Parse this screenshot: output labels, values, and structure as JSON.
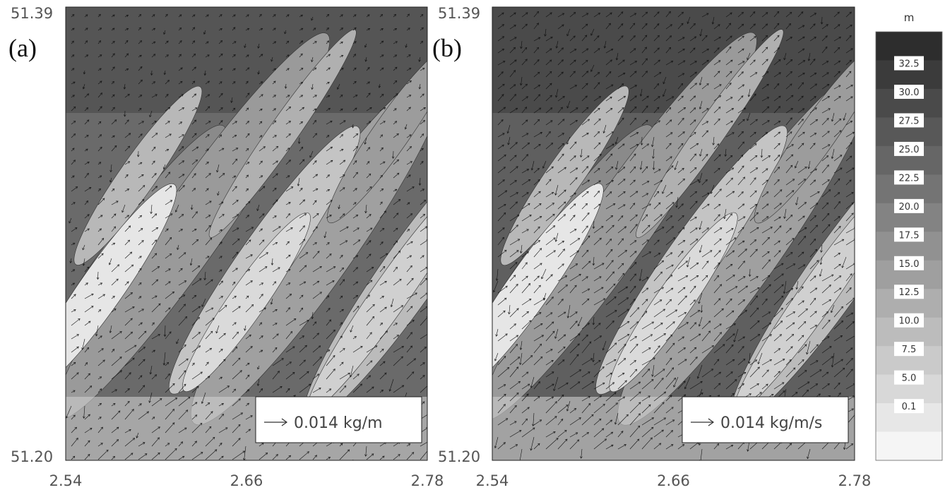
{
  "panels": [
    {
      "label": "(a)",
      "y_ticks": [
        "51.39",
        "51.20"
      ],
      "x_ticks": [
        "2.54",
        "2.66",
        "2.78"
      ],
      "legend": "0.014 kg/m"
    },
    {
      "label": "(b)",
      "y_ticks": [
        "51.39",
        "51.20"
      ],
      "x_ticks": [
        "2.54",
        "2.66",
        "2.78"
      ],
      "legend": "0.014 kg/m/s"
    }
  ],
  "colorbar": {
    "unit": "m",
    "labels": [
      "32.5",
      "30.0",
      "27.5",
      "25.0",
      "22.5",
      "20.0",
      "17.5",
      "15.0",
      "12.5",
      "10.0",
      "7.5",
      "5.0",
      "0.1"
    ]
  }
}
